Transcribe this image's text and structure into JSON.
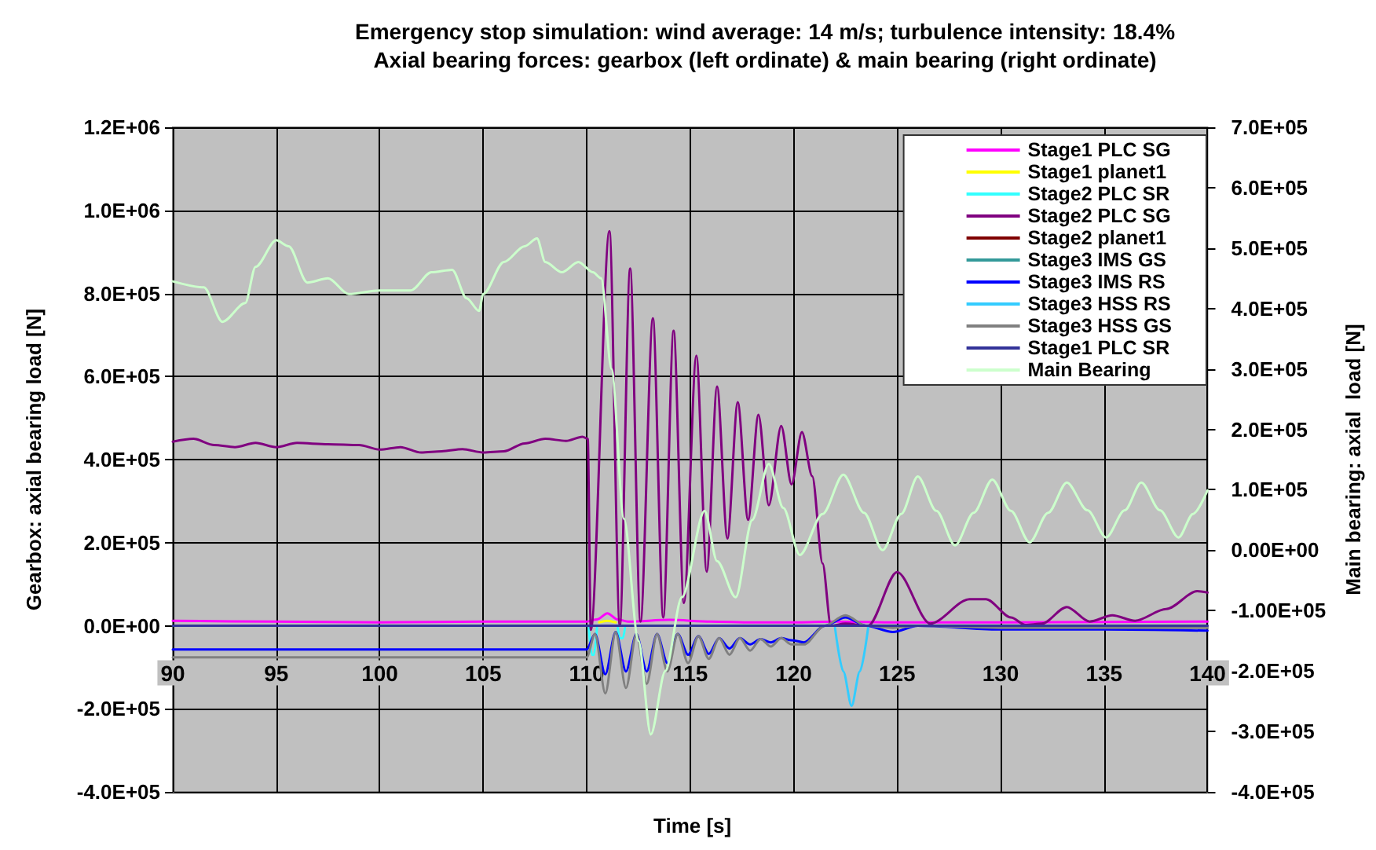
{
  "chart_data": {
    "type": "line",
    "title": "Emergency stop simulation: wind average: 14 m/s; turbulence intensity: 18.4%",
    "subtitle": "Axial bearing forces: gearbox (left ordinate) & main bearing (right ordinate)",
    "xlabel": "Time [s]",
    "ylabel": "Gearbox: axial bearing load [N]",
    "y2label": "Main bearing: axial  load [N]",
    "xlim": [
      90,
      140
    ],
    "xticks": [
      90,
      95,
      100,
      105,
      110,
      115,
      120,
      125,
      130,
      135,
      140
    ],
    "ylim": [
      -400000,
      1200000
    ],
    "yticks": [
      {
        "value": -400000,
        "label": "-4.0E+05"
      },
      {
        "value": -200000,
        "label": "-2.0E+05"
      },
      {
        "value": 0,
        "label": "0.0E+00"
      },
      {
        "value": 200000,
        "label": "2.0E+05"
      },
      {
        "value": 400000,
        "label": "4.0E+05"
      },
      {
        "value": 600000,
        "label": "6.0E+05"
      },
      {
        "value": 800000,
        "label": "8.0E+05"
      },
      {
        "value": 1000000,
        "label": "1.0E+06"
      },
      {
        "value": 1200000,
        "label": "1.2E+06"
      }
    ],
    "y2lim": [
      -400000,
      700000
    ],
    "y2ticks": [
      {
        "value": -400000,
        "label": "-4.0E+05"
      },
      {
        "value": -300000,
        "label": "-3.0E+05"
      },
      {
        "value": -200000,
        "label": "-2.0E+05"
      },
      {
        "value": -100000,
        "label": "-1.00E+05"
      },
      {
        "value": 0,
        "label": "0.00E+00"
      },
      {
        "value": 100000,
        "label": "1.0E+05"
      },
      {
        "value": 200000,
        "label": "2.0E+05"
      },
      {
        "value": 300000,
        "label": "3.0E+05"
      },
      {
        "value": 400000,
        "label": "4.0E+05"
      },
      {
        "value": 500000,
        "label": "5.0E+05"
      },
      {
        "value": 600000,
        "label": "6.0E+05"
      },
      {
        "value": 700000,
        "label": "7.0E+05"
      }
    ],
    "grid": true,
    "legend": "top right",
    "marker": "none",
    "line_style": "solid",
    "series": [
      {
        "name": "Stage1 PLC SG",
        "color": "#ff00ff",
        "x": [
          90,
          95,
          100,
          105,
          110,
          110.5,
          111,
          111.5,
          112,
          114,
          116,
          118,
          120,
          122,
          125,
          130,
          135,
          140
        ],
        "values": [
          12000,
          10000,
          8000,
          10000,
          10000,
          15000,
          30000,
          15000,
          10000,
          14000,
          10000,
          8000,
          8000,
          10000,
          8000,
          8000,
          9000,
          10000
        ]
      },
      {
        "name": "Stage1 planet1",
        "color": "#ffff00",
        "x": [
          110.6,
          111,
          111.4
        ],
        "values": [
          8000,
          12000,
          8000
        ]
      },
      {
        "name": "Stage2 PLC SR",
        "color": "#33ffff",
        "x": [
          110.1,
          110.25,
          110.35,
          110.5,
          111,
          111.5,
          111.6,
          111.75,
          111.85
        ],
        "values": [
          -5000,
          -70000,
          -70000,
          -5000,
          null,
          -5000,
          -30000,
          -30000,
          -5000
        ]
      },
      {
        "name": "Stage2 PLC SG",
        "color": "#800080",
        "x": [
          90,
          91,
          92,
          93,
          94,
          95,
          96,
          97.5,
          99,
          100,
          101,
          102,
          103,
          104,
          105,
          106,
          107,
          108,
          109,
          109.8,
          110.05,
          110.2,
          111.1,
          111.6,
          112.1,
          112.6,
          113.2,
          113.7,
          114.2,
          114.7,
          115.3,
          115.8,
          116.3,
          116.8,
          117.3,
          117.8,
          118.3,
          118.8,
          119.4,
          119.9,
          120.4,
          120.9,
          121.4,
          121.8,
          122.5,
          123.6,
          125,
          126.6,
          128.5,
          129.3,
          130.5,
          131.2,
          132,
          133.2,
          134.3,
          135.4,
          136.5,
          138,
          139.5,
          140
        ],
        "values": [
          443000,
          450000,
          435000,
          430000,
          440000,
          430000,
          440000,
          437000,
          435000,
          424000,
          430000,
          417000,
          420000,
          425000,
          417000,
          420000,
          439000,
          450000,
          445000,
          455000,
          450000,
          -10000,
          950000,
          0,
          860000,
          10000,
          740000,
          20000,
          710000,
          55000,
          650000,
          130000,
          576000,
          210000,
          538000,
          255000,
          508000,
          290000,
          481000,
          340000,
          466000,
          360000,
          150000,
          0,
          5000,
          0,
          129000,
          5000,
          64000,
          64000,
          20000,
          2000,
          5000,
          45000,
          10000,
          25000,
          12000,
          40000,
          83000,
          80000
        ]
      },
      {
        "name": "Stage2 planet1",
        "color": "#800000"
      },
      {
        "name": "Stage3 IMS GS",
        "color": "#339999"
      },
      {
        "name": "Stage3 IMS RS",
        "color": "#0000ff",
        "x": [
          90,
          110,
          110.4,
          110.9,
          111.4,
          111.9,
          112.4,
          112.9,
          113.4,
          113.9,
          114.4,
          114.9,
          115.4,
          115.9,
          116.4,
          116.9,
          117.4,
          117.9,
          118.4,
          118.9,
          119.4,
          119.9,
          120.5,
          121.5,
          122.5,
          123.5,
          124.8,
          126,
          130,
          135,
          140
        ],
        "values": [
          -57000,
          -57000,
          -20000,
          -117000,
          -15000,
          -110000,
          -20000,
          -110000,
          -20000,
          -90000,
          -20000,
          -70000,
          -25000,
          -68000,
          -30000,
          -55000,
          -30000,
          -45000,
          -32000,
          -40000,
          -30000,
          -35000,
          -40000,
          0,
          20000,
          0,
          -15000,
          0,
          -9000,
          -9000,
          -12000
        ]
      },
      {
        "name": "Stage3 HSS RS",
        "color": "#33ccff",
        "x": [
          122,
          122.4,
          122.8,
          123.2,
          123.6
        ],
        "values": [
          -5000,
          -110000,
          -193000,
          -110000,
          -5000
        ]
      },
      {
        "name": "Stage3 HSS GS",
        "color": "#808080",
        "x": [
          90,
          110,
          110.4,
          110.9,
          111.4,
          111.9,
          112.4,
          112.9,
          113.4,
          113.9,
          114.4,
          114.9,
          115.4,
          115.9,
          116.4,
          116.9,
          117.4,
          117.9,
          118.4,
          118.9,
          119.4,
          119.9,
          120.5,
          121.5,
          122.5,
          123.5,
          124.8,
          126,
          130,
          135,
          140
        ],
        "values": [
          -76000,
          -76000,
          -20000,
          -163000,
          -15000,
          -150000,
          -20000,
          -140000,
          -20000,
          -110000,
          -20000,
          -90000,
          -25000,
          -80000,
          -30000,
          -70000,
          -30000,
          -60000,
          -32000,
          -50000,
          -30000,
          -45000,
          -45000,
          0,
          25000,
          0,
          -5000,
          0,
          -5000,
          -5000,
          -5000
        ]
      },
      {
        "name": "Stage1 PLC SR",
        "color": "#333399",
        "x": [
          90,
          140
        ],
        "values": [
          0,
          0
        ]
      },
      {
        "name": "Main Bearing",
        "color": "#ccffcc",
        "axis": "y2",
        "x": [
          90,
          91.5,
          92.4,
          93.5,
          94,
          95,
          95.6,
          96.5,
          97.5,
          98.5,
          100,
          101.5,
          102.5,
          103.5,
          104.2,
          104.8,
          105,
          106,
          107,
          107.6,
          108,
          108.8,
          109.6,
          110.3,
          110.7,
          111.2,
          111.8,
          112.5,
          113.1,
          113.8,
          114.6,
          115.7,
          116.3,
          117.2,
          118,
          118.8,
          119.5,
          120.3,
          121.4,
          122.4,
          123.4,
          124.3,
          125.2,
          126,
          126.9,
          127.8,
          128.7,
          129.6,
          130.5,
          131.4,
          132.3,
          133.2,
          134.2,
          135.1,
          136,
          136.8,
          137.7,
          138.6,
          139.3,
          140
        ],
        "values": [
          445000,
          435000,
          378000,
          409000,
          469000,
          513000,
          503000,
          443000,
          450000,
          424000,
          430000,
          430000,
          460000,
          464000,
          417000,
          396000,
          424000,
          477000,
          503000,
          516000,
          477000,
          460000,
          477000,
          460000,
          450000,
          300000,
          52000,
          -150000,
          -305000,
          -200000,
          -78000,
          65000,
          -18000,
          -78000,
          50000,
          143000,
          70000,
          -8000,
          60000,
          125000,
          62000,
          0,
          60000,
          122000,
          65000,
          8000,
          62000,
          117000,
          65000,
          13000,
          62000,
          112000,
          66000,
          21000,
          66000,
          112000,
          66000,
          21000,
          60000,
          99000
        ]
      }
    ]
  }
}
